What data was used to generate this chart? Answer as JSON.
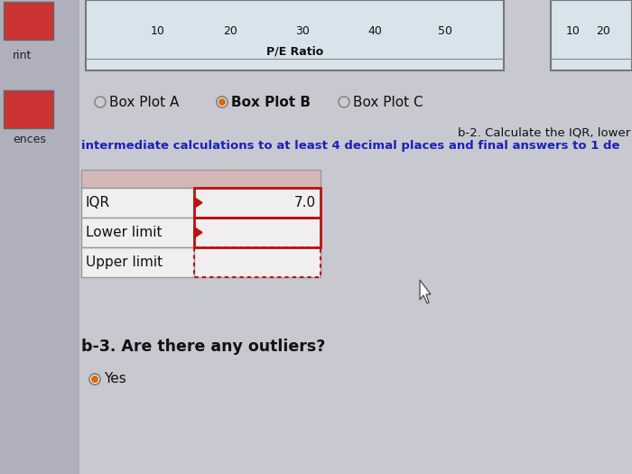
{
  "background_color": "#c8c8d0",
  "sidebar_color": "#b0b0bc",
  "top_chart_bg": "#d8e4ec",
  "top_chart_border": "#777777",
  "top_xaxis_labels": [
    "10",
    "20",
    "30",
    "40",
    "50"
  ],
  "top_xlabel": "P/E Ratio",
  "top_right_labels": [
    "10",
    "20"
  ],
  "sidebar_label_rint": "rint",
  "sidebar_label_ences": "ences",
  "radio_options": [
    "Box Plot A",
    "Box Plot B",
    "Box Plot C"
  ],
  "radio_selected": 1,
  "radio_selected_color": "#dd6600",
  "radio_unselected_color": "#aaaaaa",
  "instruction_line1": "b-2. Calculate the IQR, lower",
  "instruction_line2": "intermediate calculations to at least 4 decimal places and final answers to 1 de",
  "instruction_blue": "#1a22bb",
  "instruction_black": "#111111",
  "table_header_bg": "#d4b8b8",
  "table_row_bg": "#f0eeee",
  "table_border_color": "#999999",
  "table_rows": [
    "IQR",
    "Lower limit",
    "Upper limit"
  ],
  "table_value_iqr": "7.0",
  "red_border_color": "#bb1111",
  "b3_text": "b-3. Are there any outliers?",
  "yes_text": "Yes",
  "yes_radio_color": "#dd6600",
  "cursor_color": "#555555"
}
